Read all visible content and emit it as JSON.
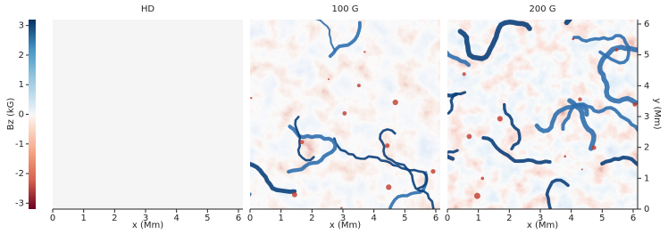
{
  "chart_data": {
    "type": "heatmap",
    "colorbar": {
      "label": "Bz (kG)",
      "lim": [
        -3.2,
        3.2
      ],
      "ticks": [
        -3,
        -2,
        -1,
        0,
        1,
        2,
        3
      ],
      "colormap": "RdBu"
    },
    "panels": [
      {
        "title": "HD",
        "xlabel": "x (Mm)",
        "xlim": [
          0,
          6.144
        ],
        "xticks": [
          0,
          1,
          2,
          3,
          4,
          5,
          6
        ]
      },
      {
        "title": "100 G",
        "xlabel": "x (Mm)",
        "xlim": [
          0,
          6.144
        ],
        "xticks": [
          0,
          1,
          2,
          3,
          4,
          5,
          6
        ]
      },
      {
        "title": "200 G",
        "xlabel": "x (Mm)",
        "xlim": [
          0,
          6.144
        ],
        "xticks": [
          0,
          1,
          2,
          3,
          4,
          5,
          6
        ]
      }
    ],
    "ylabel": "y (Mm)",
    "ylim": [
      0,
      6.144
    ],
    "yticks": [
      0,
      1,
      2,
      3,
      4,
      5,
      6
    ]
  }
}
